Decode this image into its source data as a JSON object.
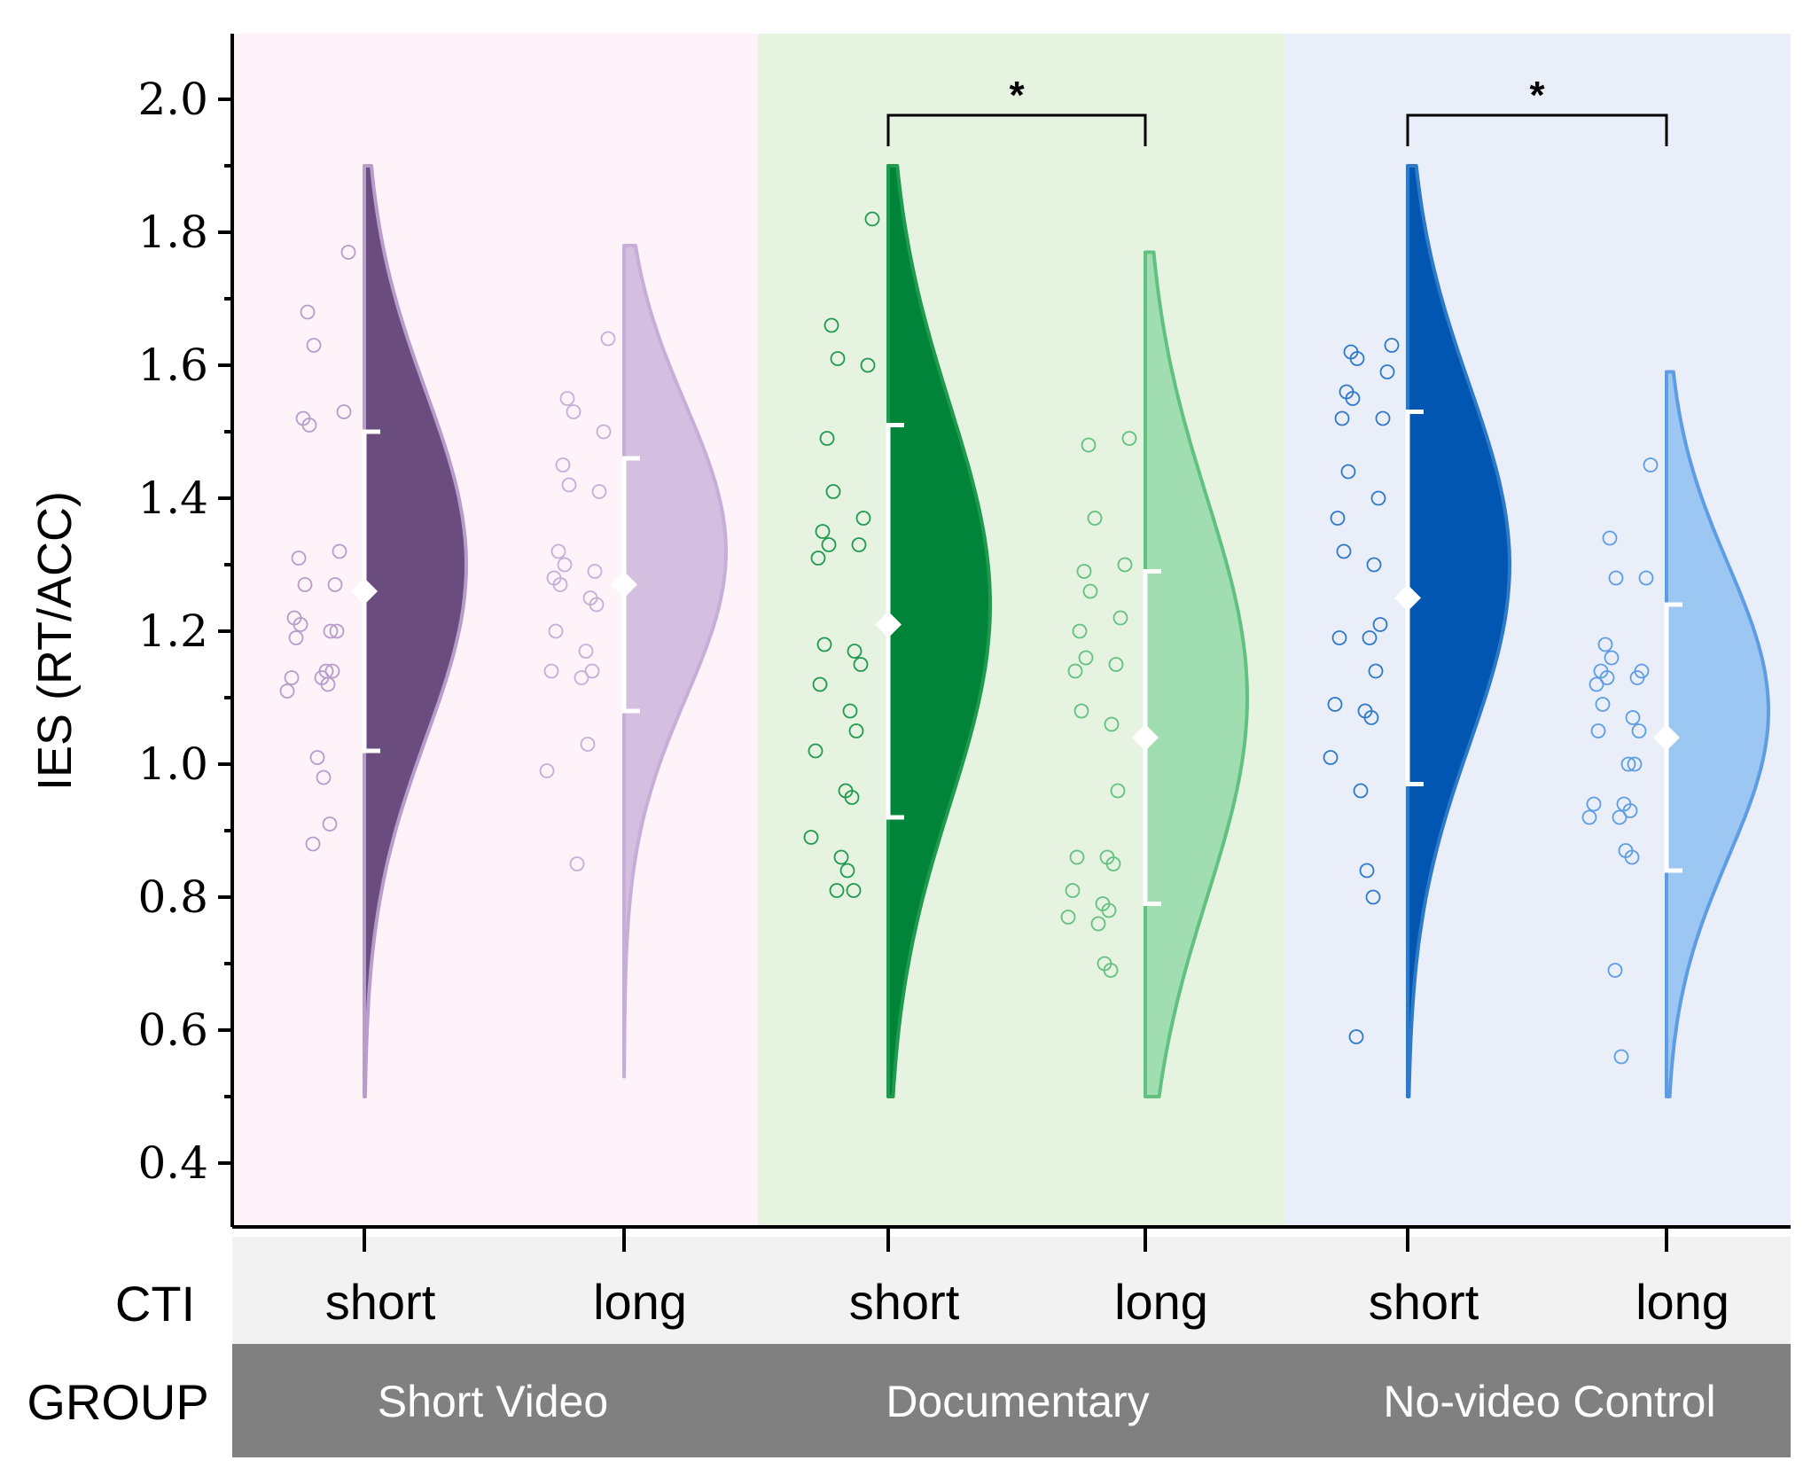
{
  "chart_data": {
    "type": "raincloud",
    "ylabel": "IES (RT/ACC)",
    "ylim": [
      0.3,
      2.1
    ],
    "yticks": [
      "0.4",
      "0.6",
      "0.8",
      "1.0",
      "1.2",
      "1.4",
      "1.6",
      "1.8",
      "2.0"
    ],
    "row_labels": {
      "cti": "CTI",
      "group": "GROUP"
    },
    "groups": [
      {
        "name": "Short Video",
        "bg": "#fdf3f9"
      },
      {
        "name": "Documentary",
        "bg": "#e6f3e1"
      },
      {
        "name": "No-video Control",
        "bg": "#e9eef9"
      }
    ],
    "series": [
      {
        "group": 0,
        "cti": "short",
        "color": "#6a4c7e",
        "line": "#b89ccb",
        "mean": 1.26,
        "lower": 1.02,
        "upper": 1.5,
        "dist": {
          "min": 0.5,
          "max": 1.9,
          "peak": 1.3,
          "sd": 0.26
        },
        "points": [
          1.77,
          1.68,
          1.63,
          1.53,
          1.52,
          1.51,
          1.32,
          1.31,
          1.27,
          1.27,
          1.22,
          1.21,
          1.2,
          1.2,
          1.19,
          1.14,
          1.14,
          1.13,
          1.13,
          1.12,
          1.11,
          1.01,
          0.98,
          0.91,
          0.88
        ]
      },
      {
        "group": 0,
        "cti": "long",
        "color": "#d4bfe1",
        "line": "#c6aed8",
        "mean": 1.27,
        "lower": 1.08,
        "upper": 1.46,
        "dist": {
          "min": 0.53,
          "max": 1.78,
          "peak": 1.32,
          "sd": 0.22
        },
        "points": [
          1.64,
          1.55,
          1.53,
          1.5,
          1.45,
          1.42,
          1.41,
          1.32,
          1.3,
          1.29,
          1.28,
          1.27,
          1.25,
          1.24,
          1.2,
          1.17,
          1.14,
          1.14,
          1.13,
          1.03,
          0.99,
          0.85
        ]
      },
      {
        "group": 1,
        "cti": "short",
        "color": "#00843a",
        "line": "#1f9a4e",
        "mean": 1.21,
        "lower": 0.92,
        "upper": 1.51,
        "dist": {
          "min": 0.5,
          "max": 1.9,
          "peak": 1.24,
          "sd": 0.3
        },
        "points": [
          1.82,
          1.66,
          1.61,
          1.6,
          1.49,
          1.41,
          1.37,
          1.35,
          1.33,
          1.33,
          1.31,
          1.18,
          1.17,
          1.15,
          1.12,
          1.08,
          1.05,
          1.02,
          0.96,
          0.95,
          0.89,
          0.86,
          0.84,
          0.81,
          0.81
        ]
      },
      {
        "group": 1,
        "cti": "long",
        "color": "#a0deb2",
        "line": "#62c17f",
        "mean": 1.04,
        "lower": 0.79,
        "upper": 1.29,
        "dist": {
          "min": 0.5,
          "max": 1.77,
          "peak": 1.1,
          "sd": 0.3
        },
        "points": [
          1.49,
          1.48,
          1.37,
          1.3,
          1.29,
          1.26,
          1.22,
          1.2,
          1.16,
          1.15,
          1.14,
          1.08,
          1.06,
          0.96,
          0.86,
          0.86,
          0.85,
          0.81,
          0.79,
          0.78,
          0.77,
          0.76,
          0.7,
          0.69
        ]
      },
      {
        "group": 2,
        "cti": "short",
        "color": "#0056b0",
        "line": "#2f79c9",
        "mean": 1.25,
        "lower": 0.97,
        "upper": 1.53,
        "dist": {
          "min": 0.5,
          "max": 1.9,
          "peak": 1.3,
          "sd": 0.27
        },
        "points": [
          1.63,
          1.62,
          1.61,
          1.59,
          1.56,
          1.55,
          1.52,
          1.52,
          1.44,
          1.4,
          1.37,
          1.32,
          1.3,
          1.21,
          1.19,
          1.19,
          1.14,
          1.09,
          1.08,
          1.07,
          1.01,
          0.96,
          0.84,
          0.8,
          0.59
        ]
      },
      {
        "group": 2,
        "cti": "long",
        "color": "#9dc7f3",
        "line": "#5e9de4",
        "mean": 1.04,
        "lower": 0.84,
        "upper": 1.24,
        "dist": {
          "min": 0.5,
          "max": 1.59,
          "peak": 1.08,
          "sd": 0.22
        },
        "points": [
          1.45,
          1.34,
          1.28,
          1.28,
          1.18,
          1.16,
          1.14,
          1.14,
          1.13,
          1.13,
          1.12,
          1.09,
          1.07,
          1.05,
          1.05,
          1.0,
          1.0,
          0.94,
          0.94,
          0.93,
          0.92,
          0.92,
          0.87,
          0.86,
          0.69,
          0.56
        ]
      }
    ],
    "significance": [
      {
        "from": 2,
        "to": 3,
        "label": "*"
      },
      {
        "from": 4,
        "to": 5,
        "label": "*"
      }
    ]
  }
}
